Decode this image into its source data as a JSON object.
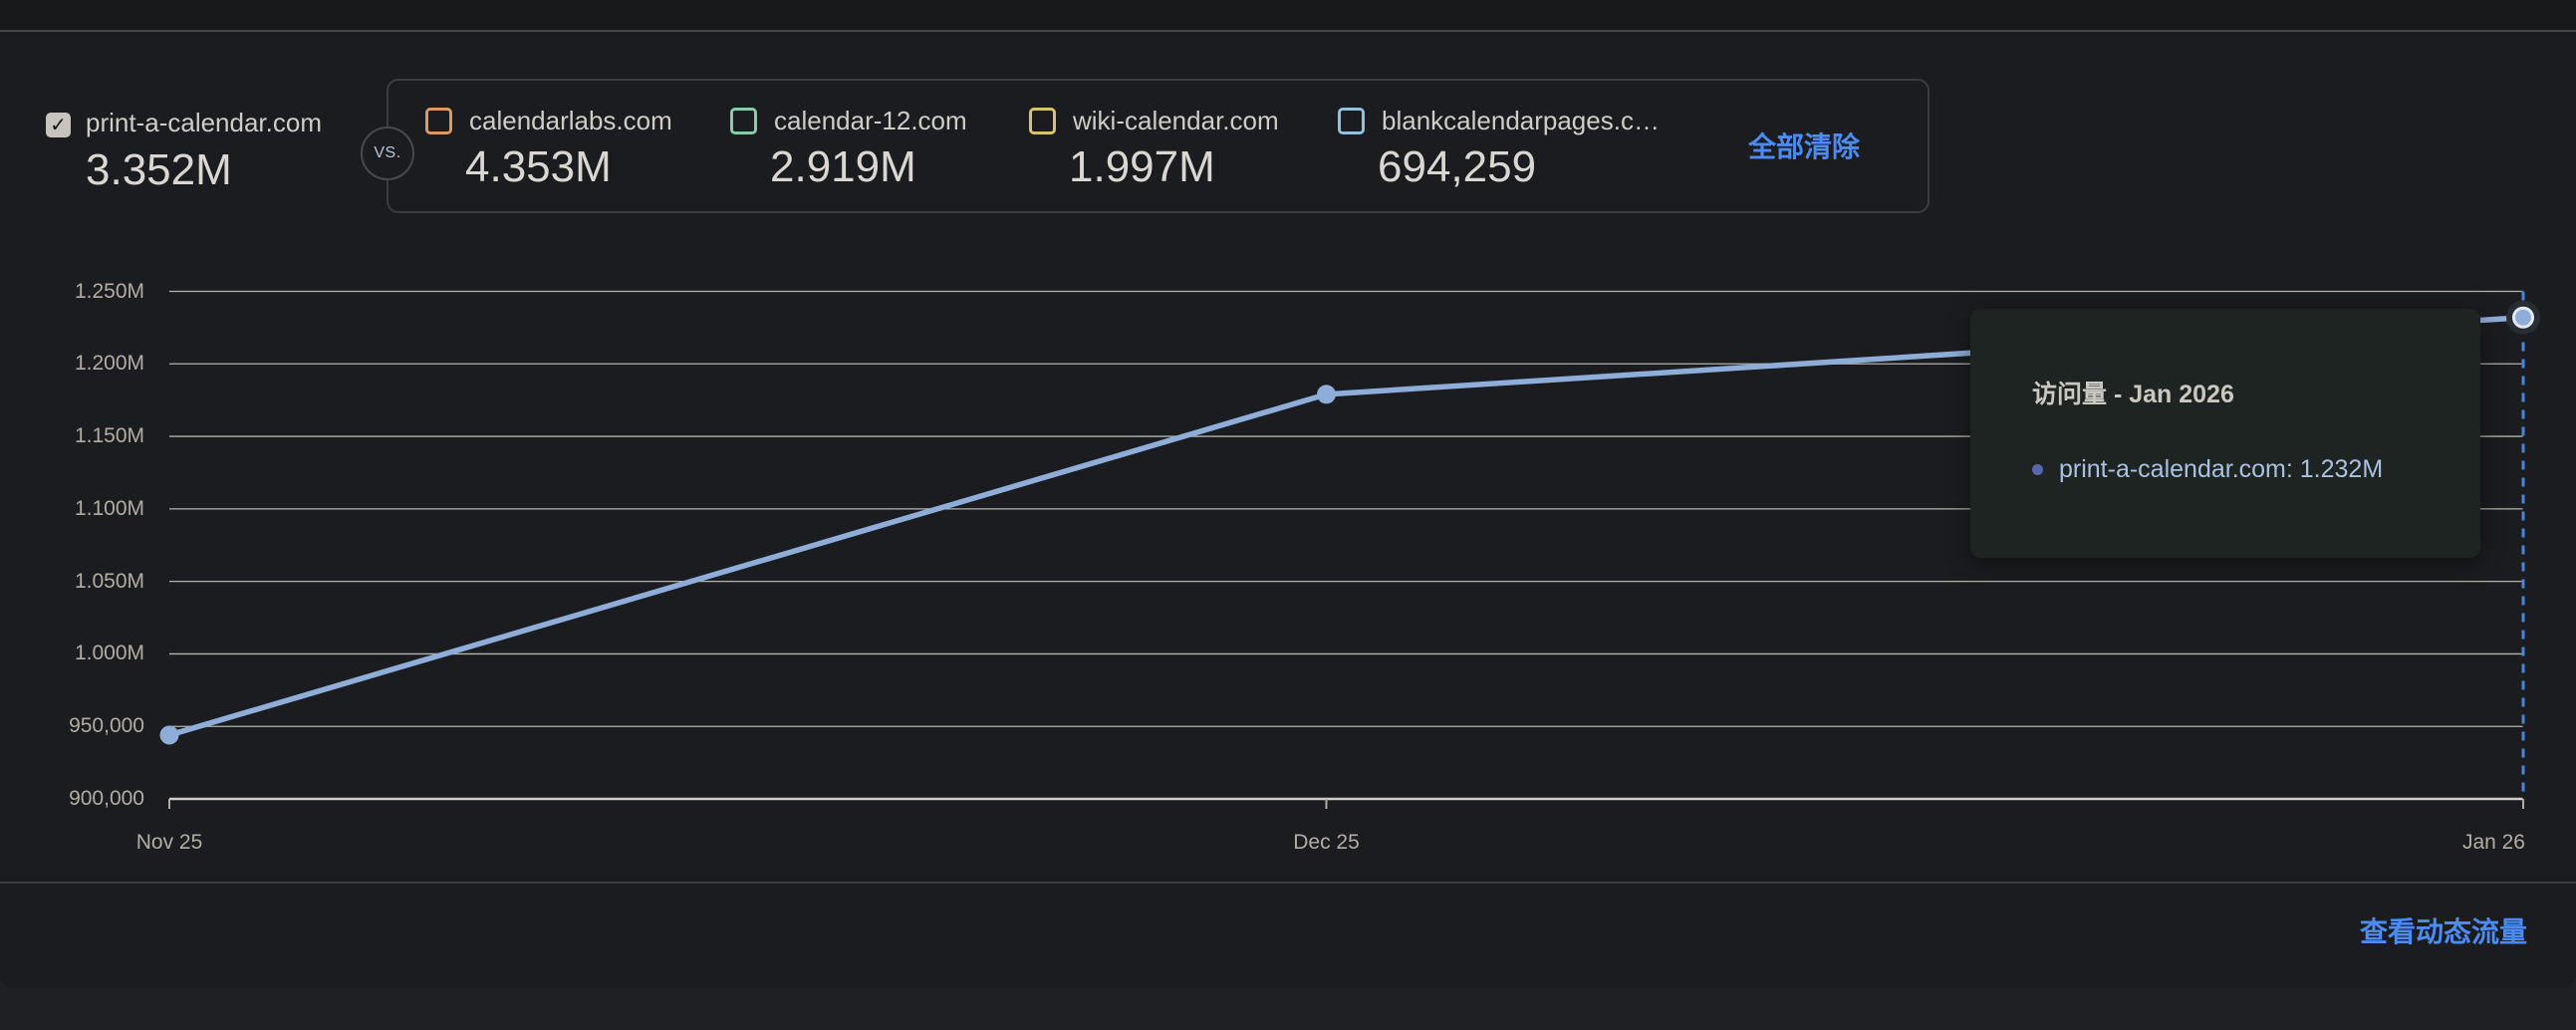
{
  "icons": {
    "check": "✓"
  },
  "header": {
    "primary": {
      "domain": "print-a-calendar.com",
      "value": "3.352M",
      "checked": true
    },
    "vs_label": "VS.",
    "competitors": [
      {
        "domain": "calendarlabs.com",
        "value": "4.353M",
        "color": "#dc9a62"
      },
      {
        "domain": "calendar-12.com",
        "value": "2.919M",
        "color": "#8acaa8"
      },
      {
        "domain": "wiki-calendar.com",
        "value": "1.997M",
        "color": "#dcc26e"
      },
      {
        "domain": "blankcalendarpages.c…",
        "value": "694,259",
        "color": "#8fc2de"
      }
    ],
    "clear_all_label": "全部清除"
  },
  "chart_data": {
    "type": "line",
    "metric_label": "访问量",
    "x": [
      "Nov 25",
      "Dec 25",
      "Jan 26"
    ],
    "y_ticks": [
      "1.250M",
      "1.200M",
      "1.150M",
      "1.100M",
      "1.050M",
      "1.000M",
      "950,000",
      "900,000"
    ],
    "ylim": [
      900000,
      1250000
    ],
    "grid": true,
    "legend_position": "none",
    "series": [
      {
        "name": "print-a-calendar.com",
        "color": "#8fadd9",
        "values": [
          944000,
          1179000,
          1232000
        ]
      }
    ],
    "highlight": {
      "x": "Jan 26",
      "dash_color": "#4a83da"
    }
  },
  "tooltip": {
    "title": "访问量 - Jan 2026",
    "entries": [
      {
        "text": "print-a-calendar.com: 1.232M",
        "bullet_color": "#5767ae"
      }
    ]
  },
  "footer": {
    "view_dynamic_traffic_label": "查看动态流量"
  }
}
